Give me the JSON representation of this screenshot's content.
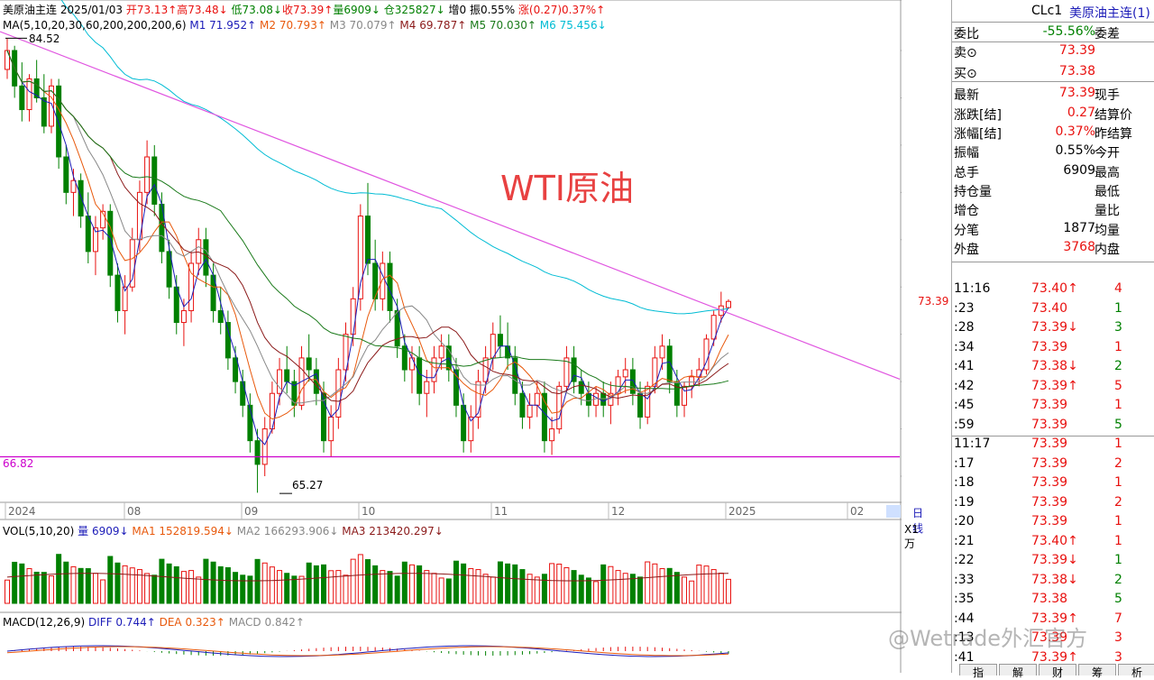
{
  "header": {
    "name": "美原油主连",
    "date": "2025/01/03",
    "open": "开73.13↑",
    "high": "高73.48↓",
    "low": "低73.08↓",
    "close": "收73.39↑",
    "volume": "量6909↓",
    "oi": "仓325827↓",
    "increase": "增0",
    "amplitude": "振0.55%",
    "change": "涨(0.27)0.37%↑"
  },
  "ma": {
    "label": "MA(5,10,20,30,60,200,200,200,6)",
    "m1": "M1 71.952↑",
    "m2": "M2 70.793↑",
    "m3": "M3 70.079↑",
    "m4": "M4 69.787↑",
    "m5": "M5 70.030↑",
    "m6": "M6 75.456↓"
  },
  "chart_labels": {
    "title_overlay": "WTI原油",
    "high_mark": "84.52",
    "low_mark": "65.27",
    "support_level": "66.82",
    "current_price": "73.39",
    "period": "日线",
    "vol_unit": "X1万"
  },
  "chart_data": {
    "type": "candlestick",
    "y_ticks": [
      "84.00",
      "82.00",
      "80.00",
      "78.00",
      "76.00",
      "74.00",
      "72.00",
      "70.00",
      "68.00",
      "66.00"
    ],
    "ylim": [
      65.0,
      85.0
    ],
    "x_labels": [
      "2024",
      "08",
      "09",
      "10",
      "11",
      "12",
      "2025",
      "02"
    ],
    "candles": [
      {
        "o": 83.2,
        "h": 84.5,
        "l": 82.8,
        "c": 84.0
      },
      {
        "o": 84.0,
        "h": 84.2,
        "l": 82.0,
        "c": 82.5
      },
      {
        "o": 82.5,
        "h": 83.5,
        "l": 81.0,
        "c": 81.5
      },
      {
        "o": 81.5,
        "h": 83.0,
        "l": 81.0,
        "c": 82.8
      },
      {
        "o": 82.8,
        "h": 83.6,
        "l": 81.8,
        "c": 82.0
      },
      {
        "o": 82.0,
        "h": 83.0,
        "l": 80.5,
        "c": 80.8
      },
      {
        "o": 80.8,
        "h": 82.8,
        "l": 80.5,
        "c": 82.5
      },
      {
        "o": 82.5,
        "h": 82.8,
        "l": 79.0,
        "c": 79.5
      },
      {
        "o": 79.5,
        "h": 80.0,
        "l": 77.5,
        "c": 78.0
      },
      {
        "o": 78.0,
        "h": 79.0,
        "l": 77.0,
        "c": 78.5
      },
      {
        "o": 78.5,
        "h": 78.8,
        "l": 76.5,
        "c": 77.0
      },
      {
        "o": 77.0,
        "h": 78.0,
        "l": 75.0,
        "c": 75.5
      },
      {
        "o": 75.5,
        "h": 77.0,
        "l": 74.5,
        "c": 76.5
      },
      {
        "o": 76.5,
        "h": 77.5,
        "l": 76.0,
        "c": 77.2
      },
      {
        "o": 77.2,
        "h": 77.5,
        "l": 74.0,
        "c": 74.5
      },
      {
        "o": 74.5,
        "h": 75.0,
        "l": 72.5,
        "c": 73.0
      },
      {
        "o": 73.0,
        "h": 74.5,
        "l": 72.0,
        "c": 74.0
      },
      {
        "o": 74.0,
        "h": 76.5,
        "l": 73.8,
        "c": 76.0
      },
      {
        "o": 76.0,
        "h": 78.5,
        "l": 75.5,
        "c": 78.0
      },
      {
        "o": 78.0,
        "h": 80.2,
        "l": 77.5,
        "c": 79.5
      },
      {
        "o": 79.5,
        "h": 80.0,
        "l": 77.0,
        "c": 77.5
      },
      {
        "o": 77.5,
        "h": 78.0,
        "l": 75.0,
        "c": 75.5
      },
      {
        "o": 75.5,
        "h": 76.0,
        "l": 73.5,
        "c": 74.0
      },
      {
        "o": 74.0,
        "h": 74.5,
        "l": 72.0,
        "c": 72.5
      },
      {
        "o": 72.5,
        "h": 73.5,
        "l": 71.5,
        "c": 73.0
      },
      {
        "o": 73.0,
        "h": 75.5,
        "l": 72.5,
        "c": 75.0
      },
      {
        "o": 75.0,
        "h": 76.5,
        "l": 74.5,
        "c": 76.0
      },
      {
        "o": 76.0,
        "h": 76.5,
        "l": 74.0,
        "c": 74.5
      },
      {
        "o": 74.5,
        "h": 75.0,
        "l": 72.5,
        "c": 73.0
      },
      {
        "o": 73.0,
        "h": 74.0,
        "l": 72.0,
        "c": 72.5
      },
      {
        "o": 72.5,
        "h": 73.0,
        "l": 70.5,
        "c": 71.0
      },
      {
        "o": 71.0,
        "h": 71.5,
        "l": 69.5,
        "c": 70.0
      },
      {
        "o": 70.0,
        "h": 70.5,
        "l": 68.5,
        "c": 69.0
      },
      {
        "o": 69.0,
        "h": 69.5,
        "l": 67.0,
        "c": 67.5
      },
      {
        "o": 67.5,
        "h": 68.0,
        "l": 65.3,
        "c": 66.5
      },
      {
        "o": 66.5,
        "h": 68.5,
        "l": 66.0,
        "c": 68.0
      },
      {
        "o": 68.0,
        "h": 70.0,
        "l": 67.8,
        "c": 69.5
      },
      {
        "o": 69.5,
        "h": 71.0,
        "l": 69.0,
        "c": 70.5
      },
      {
        "o": 70.5,
        "h": 71.5,
        "l": 69.5,
        "c": 70.0
      },
      {
        "o": 70.0,
        "h": 70.5,
        "l": 68.5,
        "c": 69.0
      },
      {
        "o": 69.0,
        "h": 71.5,
        "l": 68.8,
        "c": 71.0
      },
      {
        "o": 71.0,
        "h": 72.0,
        "l": 70.0,
        "c": 70.5
      },
      {
        "o": 70.5,
        "h": 71.0,
        "l": 69.0,
        "c": 69.5
      },
      {
        "o": 69.5,
        "h": 70.0,
        "l": 67.0,
        "c": 67.5
      },
      {
        "o": 67.5,
        "h": 69.0,
        "l": 66.8,
        "c": 68.5
      },
      {
        "o": 68.5,
        "h": 71.0,
        "l": 68.0,
        "c": 70.5
      },
      {
        "o": 70.5,
        "h": 72.5,
        "l": 70.0,
        "c": 72.0
      },
      {
        "o": 72.0,
        "h": 74.0,
        "l": 71.5,
        "c": 73.5
      },
      {
        "o": 73.5,
        "h": 77.5,
        "l": 73.0,
        "c": 77.0
      },
      {
        "o": 77.0,
        "h": 78.4,
        "l": 74.5,
        "c": 75.0
      },
      {
        "o": 75.0,
        "h": 76.0,
        "l": 73.0,
        "c": 73.5
      },
      {
        "o": 73.5,
        "h": 75.5,
        "l": 73.0,
        "c": 75.0
      },
      {
        "o": 75.0,
        "h": 75.5,
        "l": 72.5,
        "c": 73.0
      },
      {
        "o": 73.0,
        "h": 73.5,
        "l": 71.0,
        "c": 71.5
      },
      {
        "o": 71.5,
        "h": 72.0,
        "l": 70.0,
        "c": 70.5
      },
      {
        "o": 70.5,
        "h": 71.5,
        "l": 69.5,
        "c": 71.0
      },
      {
        "o": 71.0,
        "h": 71.5,
        "l": 69.0,
        "c": 69.5
      },
      {
        "o": 69.5,
        "h": 70.5,
        "l": 68.5,
        "c": 70.0
      },
      {
        "o": 70.0,
        "h": 71.5,
        "l": 69.5,
        "c": 71.0
      },
      {
        "o": 71.0,
        "h": 72.0,
        "l": 70.5,
        "c": 71.5
      },
      {
        "o": 71.5,
        "h": 72.0,
        "l": 70.0,
        "c": 70.5
      },
      {
        "o": 70.5,
        "h": 71.0,
        "l": 68.5,
        "c": 69.0
      },
      {
        "o": 69.0,
        "h": 69.5,
        "l": 67.0,
        "c": 67.5
      },
      {
        "o": 67.5,
        "h": 69.0,
        "l": 67.0,
        "c": 68.5
      },
      {
        "o": 68.5,
        "h": 70.5,
        "l": 68.0,
        "c": 70.0
      },
      {
        "o": 70.0,
        "h": 71.5,
        "l": 69.5,
        "c": 71.0
      },
      {
        "o": 71.0,
        "h": 72.5,
        "l": 70.5,
        "c": 72.0
      },
      {
        "o": 72.0,
        "h": 72.8,
        "l": 71.0,
        "c": 71.5
      },
      {
        "o": 71.5,
        "h": 72.5,
        "l": 70.5,
        "c": 71.0
      },
      {
        "o": 71.0,
        "h": 71.5,
        "l": 69.0,
        "c": 69.5
      },
      {
        "o": 69.5,
        "h": 70.0,
        "l": 68.0,
        "c": 68.5
      },
      {
        "o": 68.5,
        "h": 69.5,
        "l": 68.0,
        "c": 69.0
      },
      {
        "o": 69.0,
        "h": 70.0,
        "l": 68.5,
        "c": 69.5
      },
      {
        "o": 69.5,
        "h": 70.0,
        "l": 67.0,
        "c": 67.5
      },
      {
        "o": 67.5,
        "h": 68.5,
        "l": 66.9,
        "c": 68.0
      },
      {
        "o": 68.0,
        "h": 70.0,
        "l": 67.8,
        "c": 69.8
      },
      {
        "o": 69.8,
        "h": 71.5,
        "l": 69.5,
        "c": 71.0
      },
      {
        "o": 71.0,
        "h": 71.5,
        "l": 69.5,
        "c": 70.0
      },
      {
        "o": 70.0,
        "h": 70.5,
        "l": 69.0,
        "c": 69.5
      },
      {
        "o": 69.5,
        "h": 70.0,
        "l": 68.5,
        "c": 69.0
      },
      {
        "o": 69.0,
        "h": 69.8,
        "l": 68.5,
        "c": 69.5
      },
      {
        "o": 69.5,
        "h": 70.0,
        "l": 68.5,
        "c": 69.0
      },
      {
        "o": 69.0,
        "h": 70.0,
        "l": 68.2,
        "c": 69.5
      },
      {
        "o": 69.5,
        "h": 70.5,
        "l": 69.0,
        "c": 70.2
      },
      {
        "o": 70.2,
        "h": 71.0,
        "l": 69.5,
        "c": 70.5
      },
      {
        "o": 70.5,
        "h": 71.0,
        "l": 69.0,
        "c": 69.5
      },
      {
        "o": 69.5,
        "h": 70.0,
        "l": 68.0,
        "c": 68.5
      },
      {
        "o": 68.5,
        "h": 70.0,
        "l": 68.2,
        "c": 69.8
      },
      {
        "o": 69.8,
        "h": 71.5,
        "l": 69.5,
        "c": 71.0
      },
      {
        "o": 71.0,
        "h": 72.0,
        "l": 70.5,
        "c": 71.5
      },
      {
        "o": 71.5,
        "h": 71.8,
        "l": 69.5,
        "c": 70.0
      },
      {
        "o": 70.0,
        "h": 70.5,
        "l": 68.5,
        "c": 69.0
      },
      {
        "o": 69.0,
        "h": 70.0,
        "l": 68.5,
        "c": 69.8
      },
      {
        "o": 69.8,
        "h": 70.5,
        "l": 69.3,
        "c": 70.2
      },
      {
        "o": 70.2,
        "h": 71.0,
        "l": 69.8,
        "c": 70.5
      },
      {
        "o": 70.5,
        "h": 72.0,
        "l": 70.3,
        "c": 71.8
      },
      {
        "o": 71.8,
        "h": 73.0,
        "l": 71.5,
        "c": 72.8
      },
      {
        "o": 72.8,
        "h": 73.8,
        "l": 72.5,
        "c": 73.2
      },
      {
        "o": 73.13,
        "h": 73.48,
        "l": 73.08,
        "c": 73.39
      }
    ],
    "ma_series": [
      {
        "name": "M1",
        "color": "#1c1cb8"
      },
      {
        "name": "M2",
        "color": "#e8590c"
      },
      {
        "name": "M3",
        "color": "#888888"
      },
      {
        "name": "M4",
        "color": "#8b1a1a"
      },
      {
        "name": "M5",
        "color": "#1a7a1a"
      },
      {
        "name": "M6",
        "color": "#00bcd4"
      }
    ],
    "vol_ticks": [
      "50.00",
      "0.00"
    ],
    "vol_ylim": [
      0,
      60
    ],
    "macd_ticks": [
      "0"
    ]
  },
  "vol": {
    "label": "VOL(5,10,20)",
    "v": "量 6909↓",
    "ma1": "MA1 152819.594↓",
    "ma2": "MA2 166293.906↓",
    "ma3": "MA3 213420.297↓"
  },
  "macd": {
    "label": "MACD(12,26,9)",
    "diff": "DIFF 0.744↑",
    "dea": "DEA 0.323↑",
    "macd": "MACD 0.842↑"
  },
  "panel": {
    "code": "CLc1",
    "name": "美原油主连(1)",
    "rows": [
      {
        "l": "委比",
        "v": "-55.56%",
        "r": "委差",
        "vc": "#008000"
      },
      {
        "l": "卖⊙",
        "v": "73.39",
        "r": "",
        "vc": "#e8110f"
      },
      {
        "l": "买⊙",
        "v": "73.38",
        "r": "",
        "vc": "#e8110f"
      },
      {
        "l": "最新",
        "v": "73.39",
        "r": "现手",
        "vc": "#e8110f"
      },
      {
        "l": "涨跌[结]",
        "v": "0.27",
        "r": "结算价",
        "vc": "#e8110f"
      },
      {
        "l": "涨幅[结]",
        "v": "0.37%",
        "r": "昨结算",
        "vc": "#e8110f"
      },
      {
        "l": "振幅",
        "v": "0.55%",
        "r": "今开",
        "vc": "#000000"
      },
      {
        "l": "总手",
        "v": "6909",
        "r": "最高",
        "vc": "#000000"
      },
      {
        "l": "持仓量",
        "v": "",
        "r": "最低",
        "vc": "#000000"
      },
      {
        "l": "增仓",
        "v": "",
        "r": "量比",
        "vc": "#000000"
      },
      {
        "l": "分笔",
        "v": "1877",
        "r": "均量",
        "vc": "#000000"
      },
      {
        "l": "外盘",
        "v": "3768",
        "r": "内盘",
        "vc": "#e8110f"
      }
    ],
    "ticks": [
      {
        "t": "11:16",
        "p": "73.40↑",
        "q": "4",
        "qc": "#e8110f"
      },
      {
        "t": ":23",
        "p": "73.40",
        "q": "1",
        "qc": "#008000"
      },
      {
        "t": ":28",
        "p": "73.39↓",
        "q": "3",
        "qc": "#008000"
      },
      {
        "t": ":34",
        "p": "73.39",
        "q": "1",
        "qc": "#e8110f"
      },
      {
        "t": ":41",
        "p": "73.38↓",
        "q": "2",
        "qc": "#008000"
      },
      {
        "t": ":42",
        "p": "73.39↑",
        "q": "5",
        "qc": "#e8110f"
      },
      {
        "t": ":45",
        "p": "73.39",
        "q": "1",
        "qc": "#e8110f"
      },
      {
        "t": ":59",
        "p": "73.39",
        "q": "5",
        "qc": "#008000"
      },
      {
        "t": "11:17",
        "p": "73.39",
        "q": "1",
        "qc": "#e8110f"
      },
      {
        "t": ":17",
        "p": "73.39",
        "q": "2",
        "qc": "#e8110f"
      },
      {
        "t": ":18",
        "p": "73.39",
        "q": "1",
        "qc": "#e8110f"
      },
      {
        "t": ":19",
        "p": "73.39",
        "q": "2",
        "qc": "#e8110f"
      },
      {
        "t": ":20",
        "p": "73.39",
        "q": "1",
        "qc": "#e8110f"
      },
      {
        "t": ":21",
        "p": "73.40↑",
        "q": "1",
        "qc": "#e8110f"
      },
      {
        "t": ":22",
        "p": "73.39↓",
        "q": "1",
        "qc": "#008000"
      },
      {
        "t": ":33",
        "p": "73.38↓",
        "q": "2",
        "qc": "#008000"
      },
      {
        "t": ":35",
        "p": "73.38",
        "q": "5",
        "qc": "#008000"
      },
      {
        "t": ":44",
        "p": "73.39↑",
        "q": "7",
        "qc": "#e8110f"
      },
      {
        "t": ":13",
        "p": "73.39",
        "q": "3",
        "qc": "#e8110f"
      },
      {
        "t": ":41",
        "p": "73.39↑",
        "q": "3",
        "qc": "#e8110f"
      }
    ],
    "bottom_tabs": [
      "指",
      "解",
      "财",
      "筹",
      "析"
    ]
  },
  "watermark": "@Wetrade外汇官方"
}
